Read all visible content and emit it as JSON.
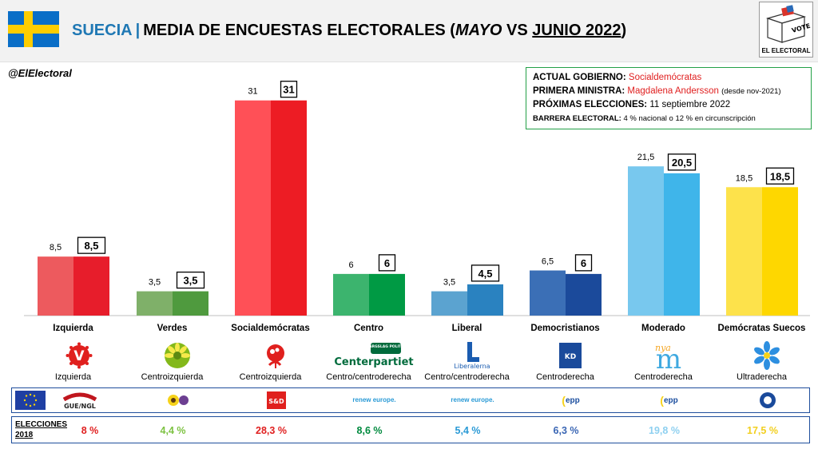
{
  "header": {
    "country": "SUECIA",
    "separator": "|",
    "title_main": "MEDIA DE ENCUESTAS ELECTORALES (",
    "title_may": "MAYO",
    "title_vs": " VS ",
    "title_june": "JUNIO 2022",
    "title_close": ")",
    "logo_text": "EL ELECTORAL",
    "vote_text": "VOTE"
  },
  "handle": "@ElElectoral",
  "info": {
    "gov_label": "ACTUAL GOBIERNO:",
    "gov_value": "Socialdemócratas",
    "pm_label": "PRIMERA MINISTRA:",
    "pm_value": "Magdalena Andersson",
    "pm_note": "(desde nov-2021)",
    "next_label": "PRÓXIMAS ELECCIONES:",
    "next_value": "11 septiembre 2022",
    "barrier_label": "BARRERA ELECTORAL:",
    "barrier_value": "4 % nacional o 12 % en circunscripción"
  },
  "colors": {
    "title_blue": "#1f78b4",
    "info_border": "#23a047"
  },
  "chart_data": {
    "type": "bar",
    "categories": [
      "Izquierda",
      "Verdes",
      "Socialdemócratas",
      "Centro",
      "Liberal",
      "Democristianos",
      "Moderado",
      "Demócratas Suecos"
    ],
    "series": [
      {
        "name": "Mayo",
        "values": [
          8.5,
          3.5,
          31,
          6,
          3.5,
          6.5,
          21.5,
          18.5
        ],
        "labels": [
          "8,5",
          "3,5",
          "31",
          "6",
          "3,5",
          "6,5",
          "21,5",
          "18,5"
        ]
      },
      {
        "name": "Junio",
        "values": [
          8.5,
          3.5,
          31,
          6,
          4.5,
          6,
          20.5,
          18.5
        ],
        "labels": [
          "8,5",
          "3,5",
          "31",
          "6",
          "4,5",
          "6",
          "20,5",
          "18,5"
        ]
      }
    ],
    "colors_may": [
      "#ed5a5e",
      "#7fb069",
      "#ff5057",
      "#3cb46e",
      "#5ba3d0",
      "#3b6fb6",
      "#78c8ee",
      "#fde24b"
    ],
    "colors_june": [
      "#e71d2b",
      "#4f9a3e",
      "#ed1c24",
      "#009a44",
      "#2a82c0",
      "#1b4a9b",
      "#3fb5ea",
      "#fed700"
    ],
    "ylim": [
      0,
      32
    ]
  },
  "parties": [
    {
      "name": "Izquierda",
      "ideology": "Izquierda",
      "logo": "V",
      "group": "GUE/NGL",
      "elections_2018": "8 %",
      "color": "#e02020"
    },
    {
      "name": "Verdes",
      "ideology": "Centroizquierda",
      "logo": "sunflower-icon",
      "group": "greens-efa-icon",
      "elections_2018": "4,4 %",
      "color": "#7dc242"
    },
    {
      "name": "Socialdemócratas",
      "ideology": "Centroizquierda",
      "logo": "rose-icon",
      "group": "S&D",
      "elections_2018": "28,3 %",
      "color": "#e02020"
    },
    {
      "name": "Centro",
      "ideology": "Centro/centroderecha",
      "logo": "Centerpartiet",
      "logo_badge": "BÄRGSLAG POLITIK",
      "group": "renew europe.",
      "elections_2018": "8,6 %",
      "color": "#008a3e"
    },
    {
      "name": "Liberal",
      "ideology": "Centro/centroderecha",
      "logo": "Liberalerna",
      "group": "renew europe.",
      "elections_2018": "5,4 %",
      "color": "#2a9ad6"
    },
    {
      "name": "Democristianos",
      "ideology": "Centroderecha",
      "logo": "KD",
      "group": "epp",
      "elections_2018": "6,3 %",
      "color": "#3a66b4"
    },
    {
      "name": "Moderado",
      "ideology": "Centroderecha",
      "logo": "m",
      "logo_script": "nya",
      "group": "epp",
      "elections_2018": "19,8 %",
      "color": "#8ed0f0"
    },
    {
      "name": "Demócratas Suecos",
      "ideology": "Ultraderecha",
      "logo": "anemone-icon",
      "group": "ecr-icon",
      "elections_2018": "17,5 %",
      "color": "#f2cf1f"
    }
  ],
  "elections_label_line1": "ELECCIONES",
  "elections_label_line2": "2018",
  "eu_flag_icon": "eu-flag-icon"
}
